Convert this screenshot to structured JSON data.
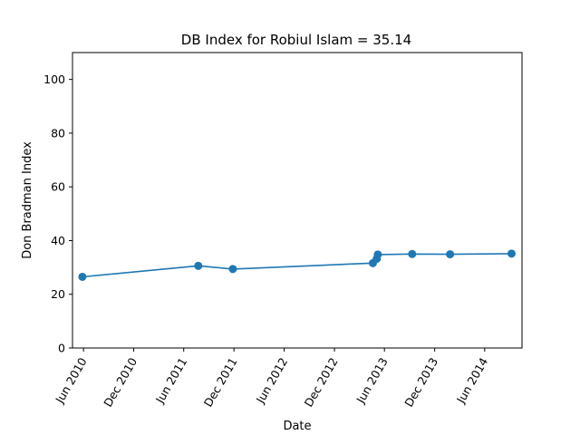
{
  "chart_data": {
    "type": "line",
    "title": "DB Index for Robiul Islam = 35.14",
    "xlabel": "Date",
    "ylabel": "Don Bradman Index",
    "ylim": [
      0,
      110
    ],
    "xlim": [
      "2010-04-22",
      "2014-10-15"
    ],
    "yticks": [
      0,
      20,
      40,
      60,
      80,
      100
    ],
    "xticks": [
      {
        "date": "2010-06-01",
        "label": "Jun 2010"
      },
      {
        "date": "2010-12-01",
        "label": "Dec 2010"
      },
      {
        "date": "2011-06-01",
        "label": "Jun 2011"
      },
      {
        "date": "2011-12-01",
        "label": "Dec 2011"
      },
      {
        "date": "2012-06-01",
        "label": "Jun 2012"
      },
      {
        "date": "2012-12-01",
        "label": "Dec 2012"
      },
      {
        "date": "2013-06-01",
        "label": "Jun 2013"
      },
      {
        "date": "2013-12-01",
        "label": "Dec 2013"
      },
      {
        "date": "2014-06-01",
        "label": "Jun 2014"
      }
    ],
    "grid": false,
    "color": "#1f77b4",
    "series": [
      {
        "x": [
          "2010-05-28",
          "2011-07-24",
          "2011-11-27",
          "2013-04-20",
          "2013-05-04",
          "2013-05-08",
          "2013-09-10",
          "2014-01-26",
          "2014-09-07"
        ],
        "y": [
          26.5,
          30.6,
          29.4,
          31.6,
          33.2,
          34.8,
          35.0,
          34.9,
          35.14
        ]
      }
    ]
  }
}
